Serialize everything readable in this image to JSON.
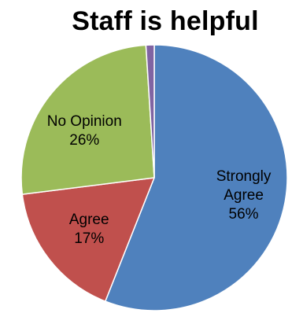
{
  "chart_data": {
    "type": "pie",
    "title": "Staff is helpful",
    "slices": [
      {
        "label": "Strongly Agree",
        "value": 56,
        "percent_label": "56%",
        "color": "#4f81bd"
      },
      {
        "label": "Agree",
        "value": 17,
        "percent_label": "17%",
        "color": "#c0504d"
      },
      {
        "label": "No Opinion",
        "value": 26,
        "percent_label": "26%",
        "color": "#9bbb59"
      },
      {
        "label": "",
        "value": 1,
        "percent_label": "",
        "color": "#8064a2"
      }
    ],
    "legend": "none",
    "start": "top",
    "direction": "clockwise"
  }
}
